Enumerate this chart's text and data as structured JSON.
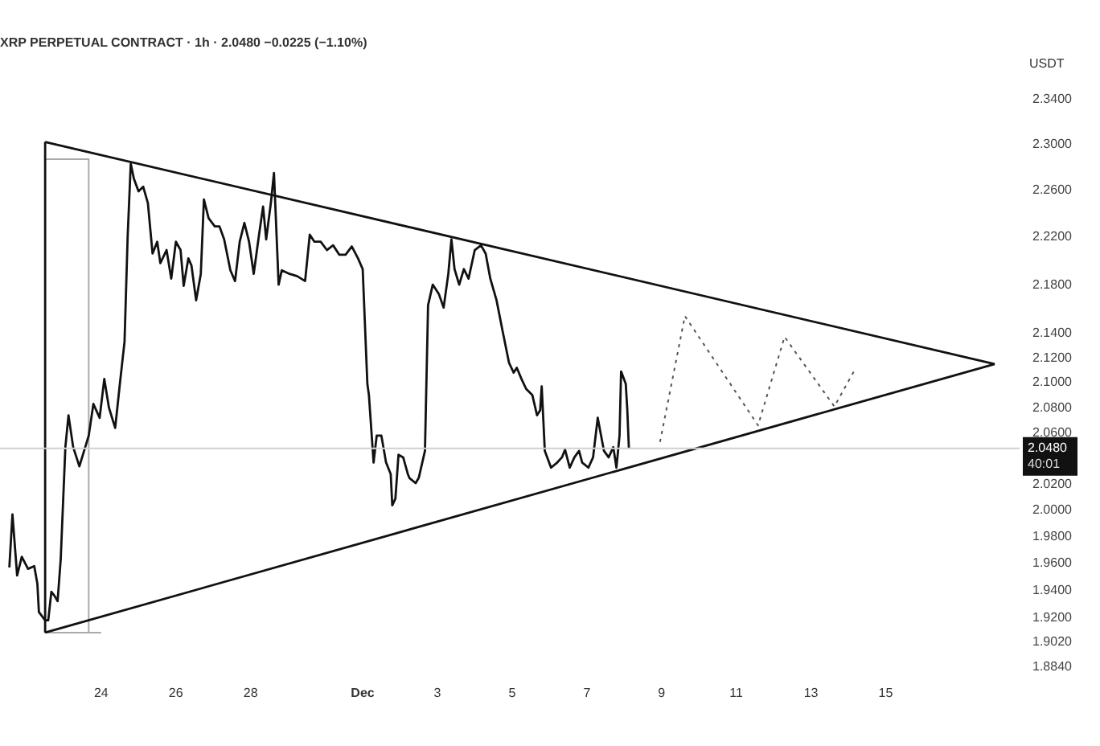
{
  "chart_data": {
    "type": "line",
    "title": "XRP PERPETUAL CONTRACT · 1h · 2.0480 −0.0225 (−1.10%)",
    "ylabel": "USDT",
    "log": "y",
    "xlim": [
      "--11-21T07:00",
      "--12-18T14:00"
    ],
    "ylim": [
      1.884,
      2.34
    ],
    "xticks": [
      {
        "value": "--11-24",
        "label": "24"
      },
      {
        "value": "--11-26",
        "label": "26"
      },
      {
        "value": "--11-28",
        "label": "28"
      },
      {
        "value": "--12-01",
        "label": "Dec"
      },
      {
        "value": "--12-03",
        "label": "3"
      },
      {
        "value": "--12-05",
        "label": "5"
      },
      {
        "value": "--12-07",
        "label": "7"
      },
      {
        "value": "--12-09",
        "label": "9"
      },
      {
        "value": "--12-11",
        "label": "11"
      },
      {
        "value": "--12-13",
        "label": "13"
      },
      {
        "value": "--12-15",
        "label": "15"
      }
    ],
    "yticks": [
      {
        "value": 2.34,
        "label": "2.3400"
      },
      {
        "value": 2.3,
        "label": "2.3000"
      },
      {
        "value": 2.26,
        "label": "2.2600"
      },
      {
        "value": 2.22,
        "label": "2.2200"
      },
      {
        "value": 2.18,
        "label": "2.1800"
      },
      {
        "value": 2.14,
        "label": "2.1400"
      },
      {
        "value": 2.12,
        "label": "2.1200"
      },
      {
        "value": 2.1,
        "label": "2.1000"
      },
      {
        "value": 2.08,
        "label": "2.0800"
      },
      {
        "value": 2.06,
        "label": "2.0600"
      },
      {
        "value": 2.02,
        "label": "2.0200"
      },
      {
        "value": 2,
        "label": "2.0000"
      },
      {
        "value": 1.98,
        "label": "1.9800"
      },
      {
        "value": 1.96,
        "label": "1.9600"
      },
      {
        "value": 1.94,
        "label": "1.9400"
      },
      {
        "value": 1.92,
        "label": "1.9200"
      },
      {
        "value": 1.902,
        "label": "1.9020"
      },
      {
        "value": 1.884,
        "label": "1.8840"
      }
    ],
    "grid": false,
    "legend": false,
    "marker": "none",
    "series": [
      {
        "color": "#111111",
        "line_style": "solid",
        "x": [
          "--11-21T13:00",
          "--11-21T15:00",
          "--11-21T18:00",
          "--11-21T21:00",
          "--11-22T01:00",
          "--11-22T05:00",
          "--11-22T07:00",
          "--11-22T08:00",
          "--11-22T12:00",
          "--11-22T14:00",
          "--11-22T16:00",
          "--11-22T18:00",
          "--11-22T20:00",
          "--11-22T22:00",
          "--11-23T01:00",
          "--11-23T03:00",
          "--11-23T06:00",
          "--11-23T10:00",
          "--11-23T16:00",
          "--11-23T19:00",
          "--11-23T23:00",
          "--11-24T02:00",
          "--11-24T05:00",
          "--11-24T09:00",
          "--11-24T12:00",
          "--11-24T15:00",
          "--11-24T17:00",
          "--11-24T19:00",
          "--11-24T21:00",
          "--11-25T00:00",
          "--11-25T03:00",
          "--11-25T06:00",
          "--11-25T09:00",
          "--11-25T12:00",
          "--11-25T14:00",
          "--11-25T18:00",
          "--11-25T21:00",
          "--11-26T00:00",
          "--11-26T03:00",
          "--11-26T05:00",
          "--11-26T08:00",
          "--11-26T10:00",
          "--11-26T13:00",
          "--11-26T16:00",
          "--11-26T18:00",
          "--11-26T21:00",
          "--11-27T01:00",
          "--11-27T04:00",
          "--11-27T07:00",
          "--11-27T11:00",
          "--11-27T14:00",
          "--11-27T17:00",
          "--11-27T20:00",
          "--11-27T23:00",
          "--11-28T02:00",
          "--11-28T05:00",
          "--11-28T08:00",
          "--11-28T10:00",
          "--11-28T13:00",
          "--11-28T15:00",
          "--11-28T18:00",
          "--11-28T20:00",
          "--11-29T01:00",
          "--11-29T06:00",
          "--11-29T11:00",
          "--11-29T14:00",
          "--11-29T17:00",
          "--11-29T21:00",
          "--11-30T01:00",
          "--11-30T05:00",
          "--11-30T09:00",
          "--11-30T13:00",
          "--11-30T17:00",
          "--11-30T21:00",
          "--12-01T00:00",
          "--12-01T03:00",
          "--12-01T04:00",
          "--12-01T07:00",
          "--12-01T09:00",
          "--12-01T12:00",
          "--12-01T15:00",
          "--12-01T18:00",
          "--12-01T19:00",
          "--12-01T21:00",
          "--12-01T23:00",
          "--12-02T02:00",
          "--12-02T05:00",
          "--12-02T06:00",
          "--12-02T10:00",
          "--12-02T12:00",
          "--12-02T16:00",
          "--12-02T18:00",
          "--12-02T21:00",
          "--12-03T01:00",
          "--12-03T04:00",
          "--12-03T07:00",
          "--12-03T09:00",
          "--12-03T11:00",
          "--12-03T14:00",
          "--12-03T17:00",
          "--12-03T20:00",
          "--12-04T00:00",
          "--12-04T04:00",
          "--12-04T07:00",
          "--12-04T10:00",
          "--12-04T14:00",
          "--12-04T18:00",
          "--12-04T22:00",
          "--12-05T01:00",
          "--12-05T03:00",
          "--12-05T06:00",
          "--12-05T09:00",
          "--12-05T13:00",
          "--12-05T16:00",
          "--12-05T18:00",
          "--12-05T19:00",
          "--12-05T21:00",
          "--12-06T01:00",
          "--12-06T05:00",
          "--12-06T08:00",
          "--12-06T10:00",
          "--12-06T13:00",
          "--12-06T16:00",
          "--12-06T19:00",
          "--12-06T21:00",
          "--12-07T01:00",
          "--12-07T04:00",
          "--12-07T07:00",
          "--12-07T11:00",
          "--12-07T14:00",
          "--12-07T17:00",
          "--12-07T19:00",
          "--12-07T21:00",
          "--12-07T22:00",
          "--12-08T01:00",
          "--12-08T02:00",
          "--12-08T03:00"
        ],
        "values": [
          1.957,
          1.997,
          1.951,
          1.965,
          1.956,
          1.958,
          1.945,
          1.924,
          1.918,
          1.918,
          1.939,
          1.936,
          1.932,
          1.963,
          2.049,
          2.074,
          2.049,
          2.034,
          2.058,
          2.083,
          2.072,
          2.103,
          2.08,
          2.064,
          2.099,
          2.133,
          2.22,
          2.283,
          2.27,
          2.259,
          2.263,
          2.249,
          2.206,
          2.216,
          2.198,
          2.209,
          2.185,
          2.216,
          2.209,
          2.179,
          2.202,
          2.196,
          2.167,
          2.189,
          2.252,
          2.236,
          2.229,
          2.229,
          2.218,
          2.192,
          2.183,
          2.216,
          2.232,
          2.216,
          2.189,
          2.218,
          2.246,
          2.218,
          2.249,
          2.275,
          2.18,
          2.192,
          2.189,
          2.187,
          2.183,
          2.222,
          2.216,
          2.216,
          2.209,
          2.213,
          2.205,
          2.205,
          2.212,
          2.202,
          2.193,
          2.099,
          2.09,
          2.037,
          2.058,
          2.058,
          2.037,
          2.028,
          2.004,
          2.009,
          2.043,
          2.041,
          2.028,
          2.025,
          2.021,
          2.025,
          2.046,
          2.163,
          2.18,
          2.172,
          2.161,
          2.189,
          2.218,
          2.193,
          2.18,
          2.193,
          2.185,
          2.209,
          2.213,
          2.206,
          2.185,
          2.167,
          2.141,
          2.116,
          2.108,
          2.112,
          2.103,
          2.095,
          2.09,
          2.074,
          2.078,
          2.097,
          2.046,
          2.033,
          2.037,
          2.041,
          2.047,
          2.033,
          2.041,
          2.046,
          2.037,
          2.033,
          2.041,
          2.072,
          2.046,
          2.041,
          2.049,
          2.033,
          2.058,
          2.109,
          2.099,
          2.078,
          2.048
        ]
      },
      {
        "color": "#111111",
        "line_style": "solid",
        "x": [
          "--11-22T12:00",
          "--12-17T22:00"
        ],
        "values": [
          2.302,
          2.115
        ]
      },
      {
        "color": "#111111",
        "line_style": "solid",
        "x": [
          "--11-22T12:00",
          "--12-17T22:00"
        ],
        "values": [
          1.909,
          2.115
        ]
      },
      {
        "color": "#111111",
        "line_style": "solid",
        "x": [
          "--11-22T12:00",
          "--11-22T12:00"
        ],
        "values": [
          1.909,
          2.302
        ]
      },
      {
        "color": "#aaaaaa",
        "line_style": "solid",
        "x": [
          "--11-22T12:00",
          "--11-23T16:00",
          "--11-23T16:00"
        ],
        "values": [
          2.287,
          2.287,
          1.909
        ]
      },
      {
        "color": "#aaaaaa",
        "line_style": "solid",
        "x": [
          "--11-22T12:00",
          "--11-24T00:00"
        ],
        "values": [
          1.909,
          1.909
        ]
      },
      {
        "color": "#555555",
        "line_style": "dotted",
        "x": [
          "--12-08T23:00",
          "--12-09T15:00",
          "--12-11T14:00",
          "--12-12T07:00",
          "--12-13T15:00",
          "--12-14T04:00"
        ],
        "values": [
          2.053,
          2.154,
          2.066,
          2.137,
          2.081,
          2.11
        ]
      }
    ],
    "ref_lines": [
      {
        "axis": "y",
        "value": 2.048,
        "label": "2.0480",
        "color": "#d0d0d0"
      }
    ],
    "annotations": [
      "40:01"
    ]
  }
}
